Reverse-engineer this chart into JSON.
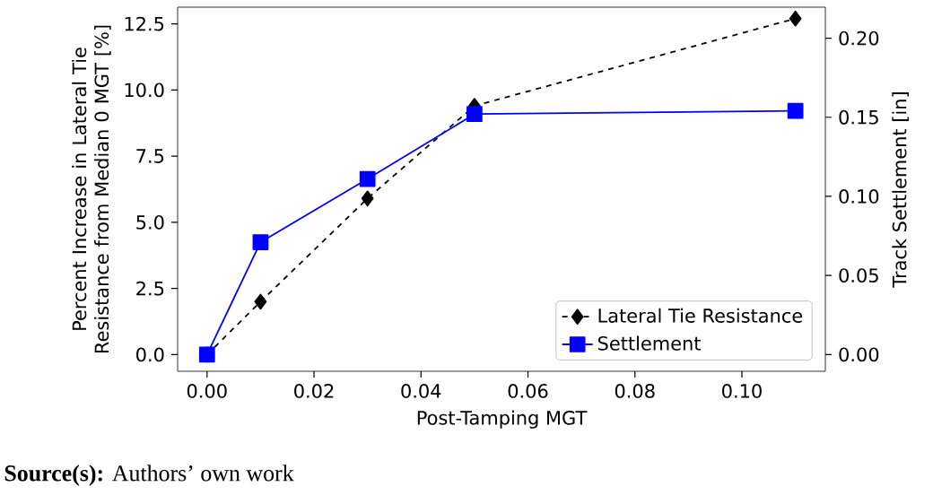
{
  "chart_data": {
    "type": "line",
    "xlabel": "Post-Tamping MGT",
    "ylabel": "Percent Increase in Lateral Tie Resistance from Median 0 MGT [%]",
    "y2label": "Track Settlement [in]",
    "x": [
      0.0,
      0.01,
      0.03,
      0.05,
      0.11
    ],
    "series": [
      {
        "name": "Lateral Tie Resistance",
        "color": "#000000",
        "values": [
          0.0,
          2.0,
          5.9,
          9.4,
          12.7
        ],
        "marker": "diamond",
        "line_style": "dashed"
      },
      {
        "name": "Settlement",
        "color": "#0000ff",
        "values": [
          0.0,
          0.071,
          0.111,
          0.152,
          0.154
        ],
        "marker": "square",
        "line_style": "solid",
        "axis": "y2"
      }
    ],
    "xlim": [
      -0.0055,
      0.1156
    ],
    "xticks": [
      {
        "value": 0,
        "label": "0.00"
      },
      {
        "value": 0.02,
        "label": "0.02"
      },
      {
        "value": 0.04,
        "label": "0.04"
      },
      {
        "value": 0.06,
        "label": "0.06"
      },
      {
        "value": 0.08,
        "label": "0.08"
      },
      {
        "value": 0.1,
        "label": "0.10"
      }
    ],
    "ylim": [
      -0.63,
      13.13
    ],
    "yticks": [
      {
        "value": 0,
        "label": "0.0"
      },
      {
        "value": 2.5,
        "label": "2.5"
      },
      {
        "value": 5,
        "label": "5.0"
      },
      {
        "value": 7.5,
        "label": "7.5"
      },
      {
        "value": 10,
        "label": "10.0"
      },
      {
        "value": 12.5,
        "label": "12.5"
      }
    ],
    "y2lim": [
      -0.0106,
      0.2196
    ],
    "y2ticks": [
      {
        "value": 0,
        "label": "0.00"
      },
      {
        "value": 0.05,
        "label": "0.05"
      },
      {
        "value": 0.1,
        "label": "0.10"
      },
      {
        "value": 0.15,
        "label": "0.15"
      },
      {
        "value": 0.2,
        "label": "0.20"
      }
    ],
    "legend": "bottom right",
    "grid": false,
    "annotations": [
      "**Source(s):** Authors’ own work"
    ]
  }
}
